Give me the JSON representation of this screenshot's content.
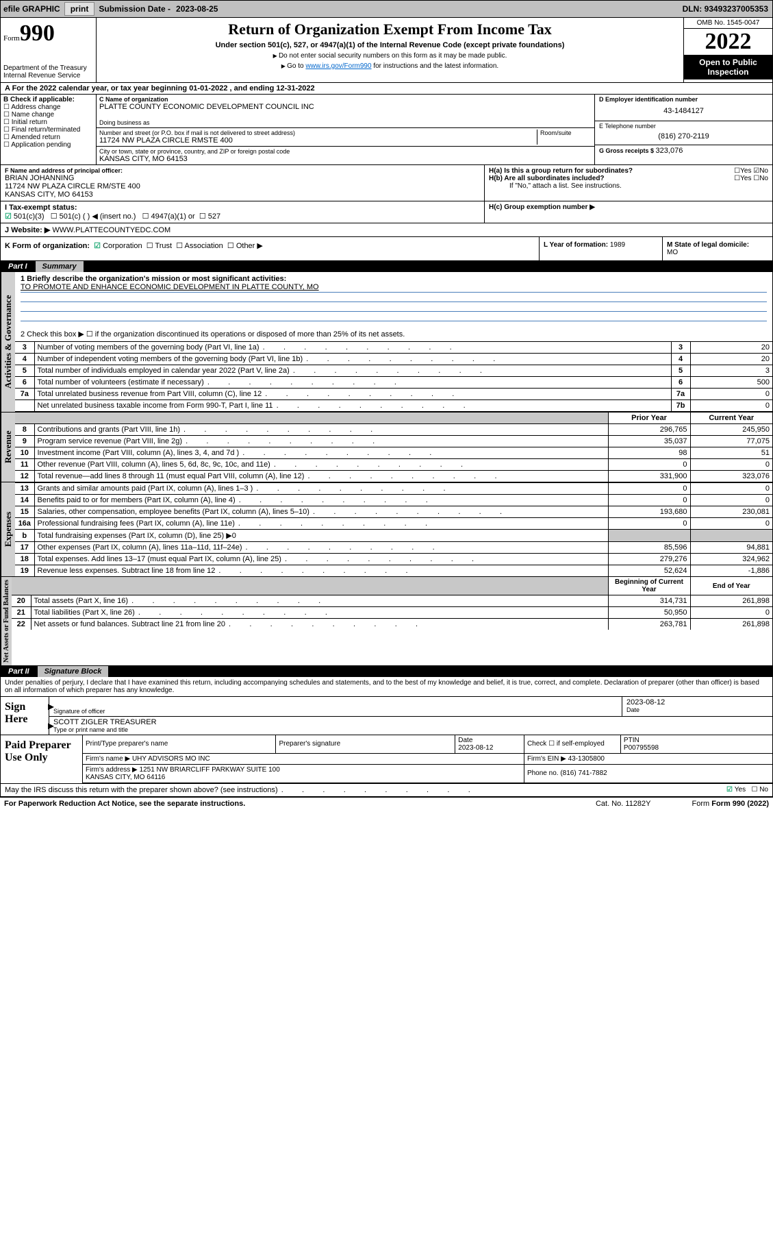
{
  "topbar": {
    "efile": "efile GRAPHIC",
    "print": "print",
    "subDateLabel": "Submission Date - ",
    "subDate": "2023-08-25",
    "dlnLabel": "DLN: ",
    "dln": "93493237005353"
  },
  "header": {
    "formLabel": "Form",
    "formNum": "990",
    "dept": "Department of the Treasury Internal Revenue Service",
    "title": "Return of Organization Exempt From Income Tax",
    "subtitle": "Under section 501(c), 527, or 4947(a)(1) of the Internal Revenue Code (except private foundations)",
    "note1": "Do not enter social security numbers on this form as it may be made public.",
    "note2pre": "Go to ",
    "note2link": "www.irs.gov/Form990",
    "note2post": " for instructions and the latest information.",
    "omb": "OMB No. 1545-0047",
    "year": "2022",
    "open": "Open to Public Inspection"
  },
  "lineA": "A For the 2022 calendar year, or tax year beginning 01-01-2022   , and ending 12-31-2022",
  "colB": {
    "title": "B Check if applicable:",
    "items": [
      "Address change",
      "Name change",
      "Initial return",
      "Final return/terminated",
      "Amended return",
      "Application pending"
    ]
  },
  "colC": {
    "nameLabel": "C Name of organization",
    "name": "PLATTE COUNTY ECONOMIC DEVELOPMENT COUNCIL INC",
    "dbaLabel": "Doing business as",
    "addrLabel": "Number and street (or P.O. box if mail is not delivered to street address)",
    "addrSuite": "Room/suite",
    "addr": "11724 NW PLAZA CIRCLE RMSTE 400",
    "cityLabel": "City or town, state or province, country, and ZIP or foreign postal code",
    "city": "KANSAS CITY, MO  64153"
  },
  "colD": {
    "einLabel": "D Employer identification number",
    "ein": "43-1484127",
    "telLabel": "E Telephone number",
    "tel": "(816) 270-2119",
    "grossLabel": "G Gross receipts $ ",
    "gross": "323,076"
  },
  "rowF": {
    "label": "F Name and address of principal officer:",
    "name": "BRIAN JOHANNING",
    "addr1": "11724 NW PLAZA CIRCLE RM/STE 400",
    "addr2": "KANSAS CITY, MO  64153"
  },
  "rowH": {
    "a": "H(a)  Is this a group return for subordinates?",
    "aYes": "Yes",
    "aNo": "No",
    "b": "H(b)  Are all subordinates included?",
    "bYes": "Yes",
    "bNo": "No",
    "bnote": "If \"No,\" attach a list. See instructions.",
    "c": "H(c)  Group exemption number ▶"
  },
  "rowI": {
    "label": "I     Tax-exempt status:",
    "o1": "501(c)(3)",
    "o2": "501(c) (   ) ◀ (insert no.)",
    "o3": "4947(a)(1) or",
    "o4": "527"
  },
  "rowJ": {
    "label": "J    Website: ▶ ",
    "val": "WWW.PLATTECOUNTYEDC.COM"
  },
  "rowK": {
    "label": "K Form of organization:",
    "o1": "Corporation",
    "o2": "Trust",
    "o3": "Association",
    "o4": "Other ▶"
  },
  "rowL": {
    "label": "L Year of formation: ",
    "val": "1989"
  },
  "rowM": {
    "label": "M State of legal domicile: ",
    "val": "MO"
  },
  "partI": {
    "num": "Part I",
    "title": "Summary"
  },
  "summary": {
    "line1label": "1   Briefly describe the organization's mission or most significant activities:",
    "line1val": "TO PROMOTE AND ENHANCE ECONOMIC DEVELOPMENT IN PLATTE COUNTY, MO",
    "line2": "2    Check this box ▶ ☐  if the organization discontinued its operations or disposed of more than 25% of its net assets.",
    "rows": [
      {
        "n": "3",
        "t": "Number of voting members of the governing body (Part VI, line 1a)",
        "box": "3",
        "v": "20"
      },
      {
        "n": "4",
        "t": "Number of independent voting members of the governing body (Part VI, line 1b)",
        "box": "4",
        "v": "20"
      },
      {
        "n": "5",
        "t": "Total number of individuals employed in calendar year 2022 (Part V, line 2a)",
        "box": "5",
        "v": "3"
      },
      {
        "n": "6",
        "t": "Total number of volunteers (estimate if necessary)",
        "box": "6",
        "v": "500"
      },
      {
        "n": "7a",
        "t": "Total unrelated business revenue from Part VIII, column (C), line 12",
        "box": "7a",
        "v": "0"
      },
      {
        "n": "",
        "t": "Net unrelated business taxable income from Form 990-T, Part I, line 11",
        "box": "7b",
        "v": "0"
      }
    ]
  },
  "twoColHeader": {
    "prior": "Prior Year",
    "current": "Current Year"
  },
  "revenue": [
    {
      "n": "8",
      "t": "Contributions and grants (Part VIII, line 1h)",
      "p": "296,765",
      "c": "245,950"
    },
    {
      "n": "9",
      "t": "Program service revenue (Part VIII, line 2g)",
      "p": "35,037",
      "c": "77,075"
    },
    {
      "n": "10",
      "t": "Investment income (Part VIII, column (A), lines 3, 4, and 7d )",
      "p": "98",
      "c": "51"
    },
    {
      "n": "11",
      "t": "Other revenue (Part VIII, column (A), lines 5, 6d, 8c, 9c, 10c, and 11e)",
      "p": "0",
      "c": "0"
    },
    {
      "n": "12",
      "t": "Total revenue—add lines 8 through 11 (must equal Part VIII, column (A), line 12)",
      "p": "331,900",
      "c": "323,076"
    }
  ],
  "expenses": [
    {
      "n": "13",
      "t": "Grants and similar amounts paid (Part IX, column (A), lines 1–3 )",
      "p": "0",
      "c": "0"
    },
    {
      "n": "14",
      "t": "Benefits paid to or for members (Part IX, column (A), line 4)",
      "p": "0",
      "c": "0"
    },
    {
      "n": "15",
      "t": "Salaries, other compensation, employee benefits (Part IX, column (A), lines 5–10)",
      "p": "193,680",
      "c": "230,081"
    },
    {
      "n": "16a",
      "t": "Professional fundraising fees (Part IX, column (A), line 11e)",
      "p": "0",
      "c": "0"
    },
    {
      "n": "b",
      "t": "Total fundraising expenses (Part IX, column (D), line 25) ▶0",
      "p": "",
      "c": "",
      "shade": true,
      "nobox": true
    },
    {
      "n": "17",
      "t": "Other expenses (Part IX, column (A), lines 11a–11d, 11f–24e)",
      "p": "85,596",
      "c": "94,881"
    },
    {
      "n": "18",
      "t": "Total expenses. Add lines 13–17 (must equal Part IX, column (A), line 25)",
      "p": "279,276",
      "c": "324,962"
    },
    {
      "n": "19",
      "t": "Revenue less expenses. Subtract line 18 from line 12",
      "p": "52,624",
      "c": "-1,886"
    }
  ],
  "netHeader": {
    "begin": "Beginning of Current Year",
    "end": "End of Year"
  },
  "net": [
    {
      "n": "20",
      "t": "Total assets (Part X, line 16)",
      "p": "314,731",
      "c": "261,898"
    },
    {
      "n": "21",
      "t": "Total liabilities (Part X, line 26)",
      "p": "50,950",
      "c": "0"
    },
    {
      "n": "22",
      "t": "Net assets or fund balances. Subtract line 21 from line 20",
      "p": "263,781",
      "c": "261,898"
    }
  ],
  "partII": {
    "num": "Part II",
    "title": "Signature Block"
  },
  "penalties": "Under penalties of perjury, I declare that I have examined this return, including accompanying schedules and statements, and to the best of my knowledge and belief, it is true, correct, and complete. Declaration of preparer (other than officer) is based on all information of which preparer has any knowledge.",
  "sign": {
    "here": "Sign Here",
    "sigOfficer": "Signature of officer",
    "date": "Date",
    "dateVal": "2023-08-12",
    "name": "SCOTT ZIGLER TREASURER",
    "nameLabel": "Type or print name and title"
  },
  "paid": {
    "title": "Paid Preparer Use Only",
    "h1": "Print/Type preparer's name",
    "h2": "Preparer's signature",
    "h3": "Date",
    "h3v": "2023-08-12",
    "h4": "Check ☐ if self-employed",
    "h5": "PTIN",
    "h5v": "P00795598",
    "firmNameL": "Firm's name    ▶ ",
    "firmName": "UHY ADVISORS MO INC",
    "firmEinL": "Firm's EIN ▶ ",
    "firmEin": "43-1305800",
    "firmAddrL": "Firm's address ▶ ",
    "firmAddr": "1251 NW BRIARCLIFF PARKWAY SUITE 100\nKANSAS CITY, MO  64116",
    "phoneL": "Phone no. ",
    "phone": "(816) 741-7882"
  },
  "footer": {
    "q": "May the IRS discuss this return with the preparer shown above? (see instructions)",
    "yes": "Yes",
    "no": "No",
    "pra": "For Paperwork Reduction Act Notice, see the separate instructions.",
    "cat": "Cat. No. 11282Y",
    "form": "Form 990 (2022)"
  },
  "vlabels": {
    "gov": "Activities & Governance",
    "rev": "Revenue",
    "exp": "Expenses",
    "net": "Net Assets or Fund Balances"
  }
}
